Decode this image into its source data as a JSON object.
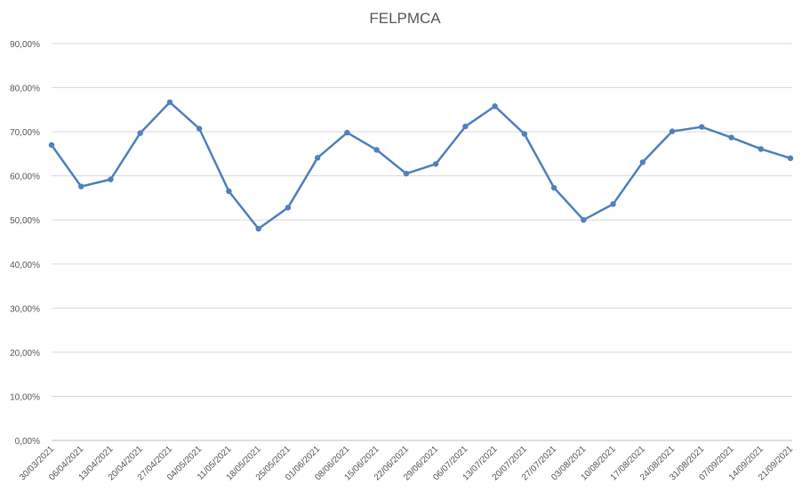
{
  "chart_data": {
    "type": "line",
    "title": "FELPMCA",
    "xlabel": "",
    "ylabel": "",
    "ylim": [
      0,
      90
    ],
    "yticks": [
      "0,00%",
      "10,00%",
      "20,00%",
      "30,00%",
      "40,00%",
      "50,00%",
      "60,00%",
      "70,00%",
      "80,00%",
      "90,00%"
    ],
    "grid": true,
    "legend": "none",
    "x": [
      "30/03/2021",
      "06/04/2021",
      "13/04/2021",
      "20/04/2021",
      "27/04/2021",
      "04/05/2021",
      "11/05/2021",
      "18/05/2021",
      "25/05/2021",
      "01/06/2021",
      "08/06/2021",
      "15/06/2021",
      "22/06/2021",
      "29/06/2021",
      "06/07/2021",
      "13/07/2021",
      "20/07/2021",
      "27/07/2021",
      "03/08/2021",
      "10/08/2021",
      "17/08/2021",
      "24/08/2021",
      "31/08/2021",
      "07/09/2021",
      "14/09/2021",
      "21/09/2021"
    ],
    "series": [
      {
        "values": [
          67.0,
          57.6,
          59.2,
          69.7,
          76.7,
          70.7,
          56.5,
          48.0,
          52.8,
          64.1,
          69.8,
          65.9,
          60.5,
          62.7,
          71.2,
          75.8,
          69.5,
          57.3,
          50.0,
          53.6,
          63.1,
          70.1,
          71.1,
          68.7,
          66.1,
          64.0
        ],
        "color": "#4f81bd"
      }
    ]
  }
}
